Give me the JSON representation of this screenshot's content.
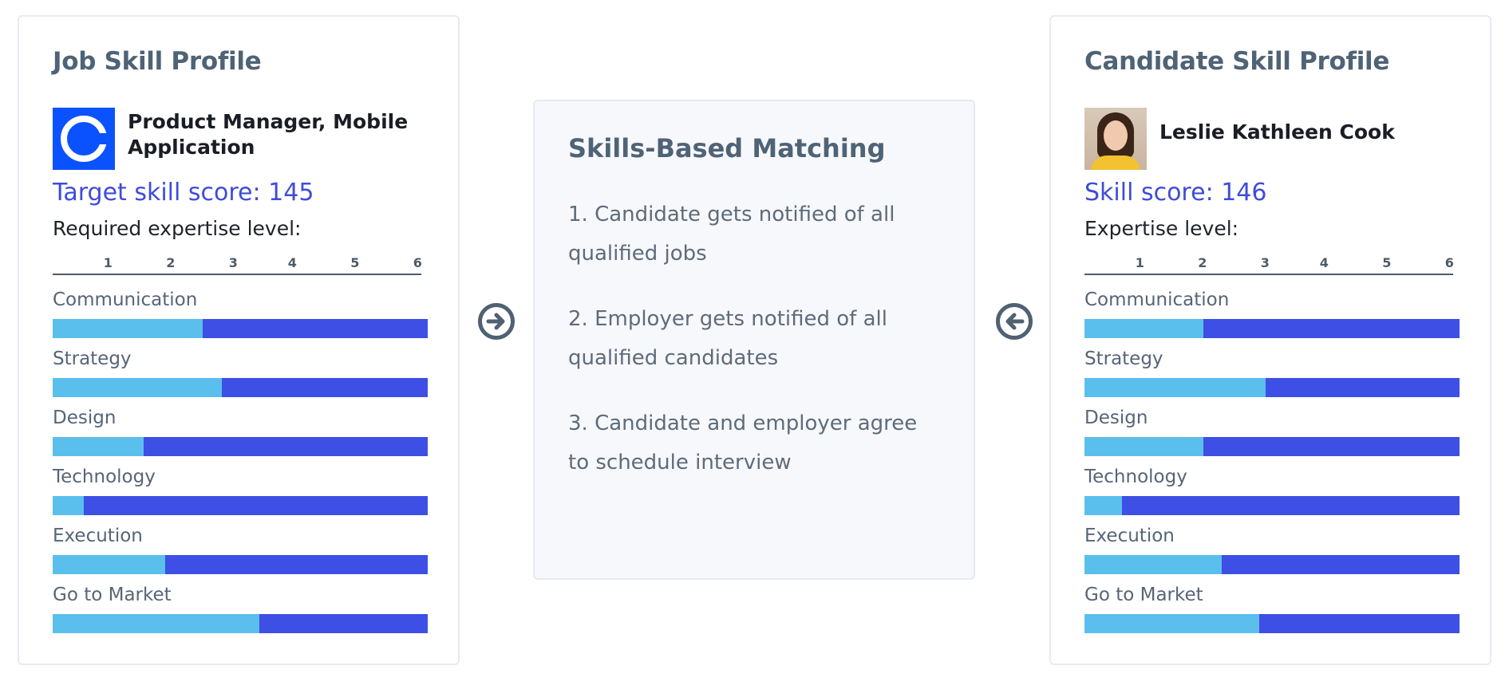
{
  "job": {
    "title": "Job Skill Profile",
    "position_name": "Product Manager, Mobile Application",
    "logo_icon": "company-c-logo",
    "score_text": "Target skill score: 145",
    "level_label": "Required expertise level:"
  },
  "candidate": {
    "title": "Candidate Skill Profile",
    "name": "Leslie Kathleen Cook",
    "photo": "candidate-photo",
    "score_text": "Skill score: 146",
    "level_label": "Expertise level:"
  },
  "scale": {
    "ticks": [
      "1",
      "2",
      "3",
      "4",
      "5",
      "6"
    ],
    "min": 0,
    "max": 6
  },
  "colors": {
    "bar_fill": "#5bbfed",
    "bar_track": "#3d4fe4",
    "score_text": "#3f4cd8",
    "logo_blue": "#0b52ff"
  },
  "job_skills": [
    {
      "name": "Communication",
      "level": 2.4
    },
    {
      "name": "Strategy",
      "level": 2.7
    },
    {
      "name": "Design",
      "level": 1.45
    },
    {
      "name": "Technology",
      "level": 0.5
    },
    {
      "name": "Execution",
      "level": 1.8
    },
    {
      "name": "Go to Market",
      "level": 3.3
    }
  ],
  "candidate_skills": [
    {
      "name": "Communication",
      "level": 1.9
    },
    {
      "name": "Strategy",
      "level": 2.9
    },
    {
      "name": "Design",
      "level": 1.9
    },
    {
      "name": "Technology",
      "level": 0.6
    },
    {
      "name": "Execution",
      "level": 2.2
    },
    {
      "name": "Go to Market",
      "level": 2.8
    }
  ],
  "matching": {
    "title": "Skills-Based Matching",
    "steps": [
      "1. Candidate gets notified of all qualified jobs",
      "2. Employer gets notified of all qualified candidates",
      "3. Candidate and employer agree to schedule interview"
    ]
  },
  "arrows": {
    "right_icon": "arrow-right-circle-icon",
    "left_icon": "arrow-left-circle-icon"
  }
}
